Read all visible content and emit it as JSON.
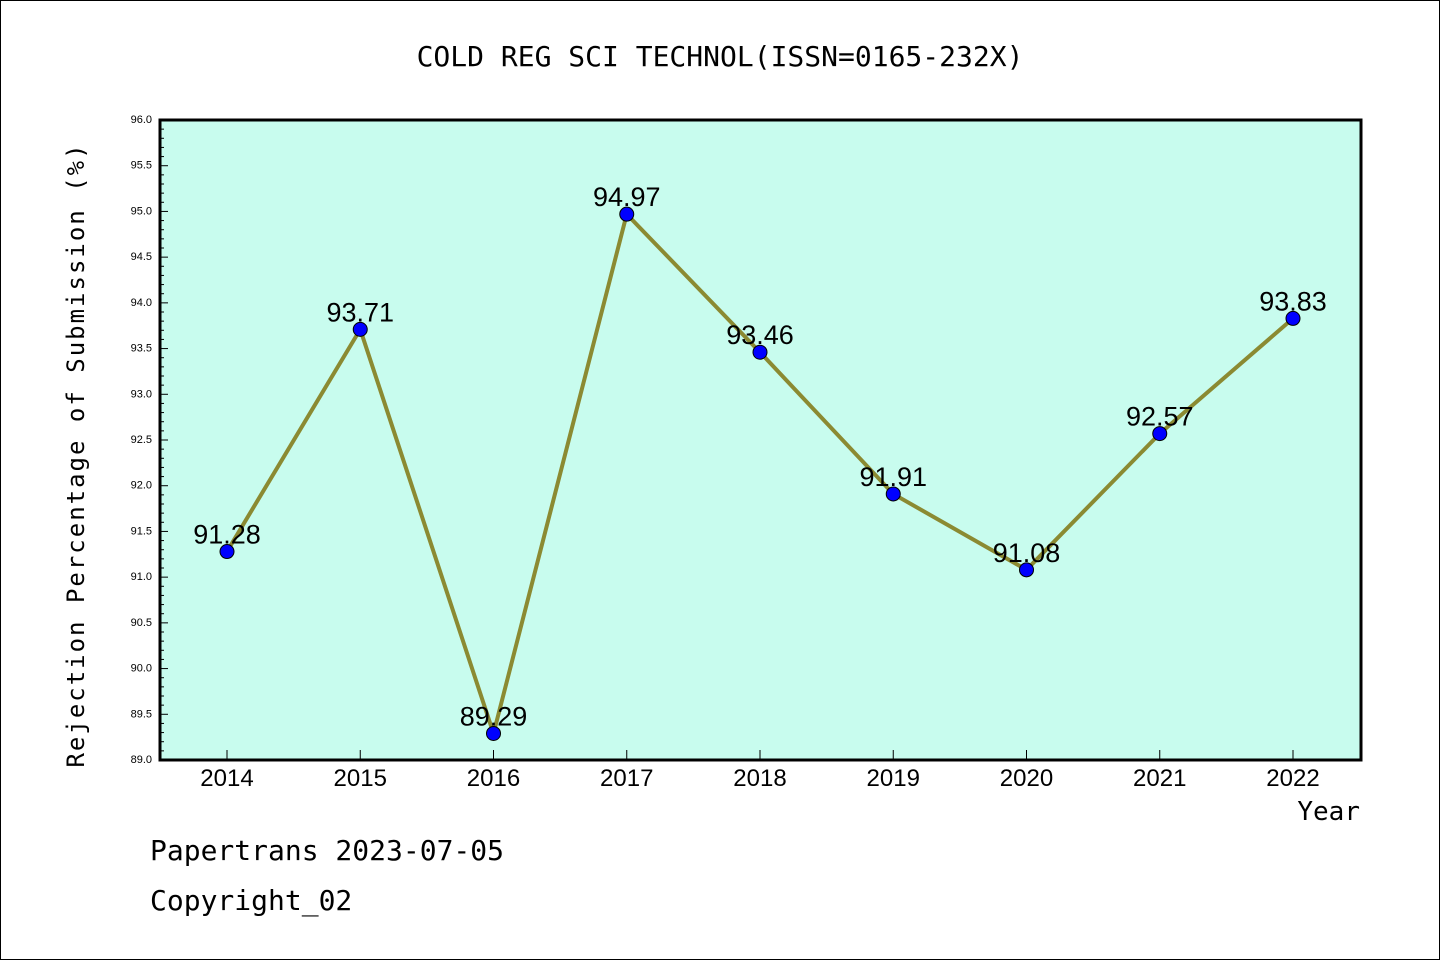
{
  "chart_data": {
    "type": "line",
    "title": "COLD REG SCI TECHNOL(ISSN=0165-232X)",
    "xlabel": "Year",
    "ylabel": "Rejection Percentage of Submission (%)",
    "categories": [
      "2014",
      "2015",
      "2016",
      "2017",
      "2018",
      "2019",
      "2020",
      "2021",
      "2022"
    ],
    "series": [
      {
        "values": [
          91.28,
          93.71,
          89.29,
          94.97,
          93.46,
          91.91,
          91.08,
          92.57,
          93.83
        ],
        "labels": [
          "91.28",
          "93.71",
          "89.29",
          "94.97",
          "93.46",
          "91.91",
          "91.08",
          "92.57",
          "93.83"
        ]
      }
    ],
    "ylim": [
      89.0,
      96.0
    ],
    "yticks": [
      "89.0",
      "89.5",
      "90.0",
      "90.5",
      "91.0",
      "91.5",
      "92.0",
      "92.5",
      "93.0",
      "93.5",
      "94.0",
      "94.5",
      "95.0",
      "95.5",
      "96.0"
    ],
    "grid": false,
    "colors": {
      "plot_background": "#c8fcee",
      "line": "#8b8a32",
      "marker": "#0000ff"
    }
  },
  "footer": {
    "line1": "Papertrans 2023-07-05",
    "line2": "Copyright_02"
  }
}
